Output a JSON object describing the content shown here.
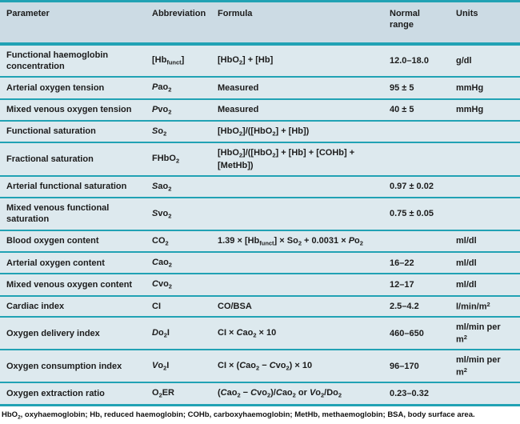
{
  "colors": {
    "divider_teal": "#21a2b4",
    "header_background": "#ccdbe4",
    "row_background": "#dde9ee",
    "text": "#1c1c1c"
  },
  "table": {
    "columns": [
      "Parameter",
      "Abbreviation",
      "Formula",
      "Normal range",
      "Units"
    ],
    "rows": [
      {
        "parameter": [
          "Functional haemoglobin concentration"
        ],
        "abbreviation": [
          "[Hb",
          [
            "funct",
            "sub"
          ],
          "]"
        ],
        "formula": [
          "[HbO",
          [
            "2",
            "sub"
          ],
          "] + [Hb]"
        ],
        "normal_range": [
          "12.0–18.0"
        ],
        "units": [
          "g/dl"
        ]
      },
      {
        "parameter": [
          "Arterial oxygen tension"
        ],
        "abbreviation": [
          [
            "P",
            "i"
          ],
          "ao",
          [
            "2",
            "sub"
          ]
        ],
        "formula": [
          "Measured"
        ],
        "normal_range": [
          "95 ± 5"
        ],
        "units": [
          "mmHg"
        ]
      },
      {
        "parameter": [
          "Mixed venous oxygen tension"
        ],
        "abbreviation": [
          [
            "P",
            "i"
          ],
          "vo",
          [
            "2",
            "sub"
          ]
        ],
        "formula": [
          "Measured"
        ],
        "normal_range": [
          "40 ± 5"
        ],
        "units": [
          "mmHg"
        ]
      },
      {
        "parameter": [
          "Functional saturation"
        ],
        "abbreviation": [
          [
            "S",
            "i"
          ],
          "o",
          [
            "2",
            "sub"
          ]
        ],
        "formula": [
          "[HbO",
          [
            "2",
            "sub"
          ],
          "]/([HbO",
          [
            "2",
            "sub"
          ],
          "] + [Hb])"
        ],
        "normal_range": [],
        "units": []
      },
      {
        "parameter": [
          "Fractional saturation"
        ],
        "abbreviation": [
          "FHbO",
          [
            "2",
            "sub"
          ]
        ],
        "formula": [
          "[HbO",
          [
            "2",
            "sub"
          ],
          "]/([HbO",
          [
            "2",
            "sub"
          ],
          "] + [Hb] + [COHb] + [MetHb])"
        ],
        "normal_range": [],
        "units": []
      },
      {
        "parameter": [
          "Arterial functional saturation"
        ],
        "abbreviation": [
          [
            "S",
            "i"
          ],
          "ao",
          [
            "2",
            "sub"
          ]
        ],
        "formula": [],
        "normal_range": [
          "0.97 ± 0.02"
        ],
        "units": []
      },
      {
        "parameter": [
          "Mixed venous functional saturation"
        ],
        "abbreviation": [
          [
            "S",
            "i"
          ],
          "vo",
          [
            "2",
            "sub"
          ]
        ],
        "formula": [],
        "normal_range": [
          "0.75 ± 0.05"
        ],
        "units": []
      },
      {
        "parameter": [
          "Blood oxygen content"
        ],
        "abbreviation": [
          "CO",
          [
            "2",
            "sub"
          ]
        ],
        "formula": [
          "1.39 × [Hb",
          [
            "funct",
            "sub"
          ],
          "] × So",
          [
            "2",
            "sub"
          ],
          " + 0.0031 × ",
          [
            "P",
            "i"
          ],
          "o",
          [
            "2",
            "sub"
          ]
        ],
        "normal_range": [],
        "units": [
          "ml/dl"
        ]
      },
      {
        "parameter": [
          "Arterial oxygen content"
        ],
        "abbreviation": [
          [
            "C",
            "i"
          ],
          "ao",
          [
            "2",
            "sub"
          ]
        ],
        "formula": [],
        "normal_range": [
          "16–22"
        ],
        "units": [
          "ml/dl"
        ]
      },
      {
        "parameter": [
          "Mixed venous oxygen content"
        ],
        "abbreviation": [
          [
            "C",
            "i"
          ],
          "vo",
          [
            "2",
            "sub"
          ]
        ],
        "formula": [],
        "normal_range": [
          "12–17"
        ],
        "units": [
          "ml/dl"
        ]
      },
      {
        "parameter": [
          "Cardiac index"
        ],
        "abbreviation": [
          "CI"
        ],
        "formula": [
          "CO/BSA"
        ],
        "normal_range": [
          "2.5–4.2"
        ],
        "units": [
          "l/min/m",
          [
            "2",
            "sup"
          ]
        ]
      },
      {
        "parameter": [
          "Oxygen delivery index"
        ],
        "abbreviation": [
          [
            "D",
            "i"
          ],
          "o",
          [
            "2",
            "sub"
          ],
          "I"
        ],
        "formula": [
          "CI × ",
          [
            "C",
            "i"
          ],
          "ao",
          [
            "2",
            "sub"
          ],
          " × 10"
        ],
        "normal_range": [
          "460–650"
        ],
        "units": [
          "ml/min per m",
          [
            "2",
            "sup"
          ]
        ]
      },
      {
        "parameter": [
          "Oxygen consumption index"
        ],
        "abbreviation": [
          [
            "V",
            "i"
          ],
          "o",
          [
            "2",
            "sub"
          ],
          "I"
        ],
        "formula": [
          "CI × (",
          [
            "C",
            "i"
          ],
          "ao",
          [
            "2",
            "sub"
          ],
          " − ",
          [
            "C",
            "i"
          ],
          "vo",
          [
            "2",
            "sub"
          ],
          ") × 10"
        ],
        "normal_range": [
          "96–170"
        ],
        "units": [
          "ml/min per m",
          [
            "2",
            "sup"
          ]
        ]
      },
      {
        "parameter": [
          "Oxygen extraction ratio"
        ],
        "abbreviation": [
          "O",
          [
            "2",
            "sub"
          ],
          "ER"
        ],
        "formula": [
          "(",
          [
            "C",
            "i"
          ],
          "ao",
          [
            "2",
            "sub"
          ],
          " − ",
          [
            "C",
            "i"
          ],
          "vo",
          [
            "2",
            "sub"
          ],
          ")/",
          [
            "C",
            "i"
          ],
          "ao",
          [
            "2",
            "sub"
          ],
          " or ",
          [
            "V",
            "i"
          ],
          "o",
          [
            "2",
            "sub"
          ],
          "/Do",
          [
            "2",
            "sub"
          ]
        ],
        "normal_range": [
          "0.23–0.32"
        ],
        "units": []
      }
    ]
  },
  "footnote": [
    "HbO",
    [
      "2",
      "sub"
    ],
    ", oxyhaemoglobin; Hb, reduced haemoglobin; COHb, carboxyhaemoglobin; MetHb, methaemoglobin; BSA, body surface area."
  ]
}
